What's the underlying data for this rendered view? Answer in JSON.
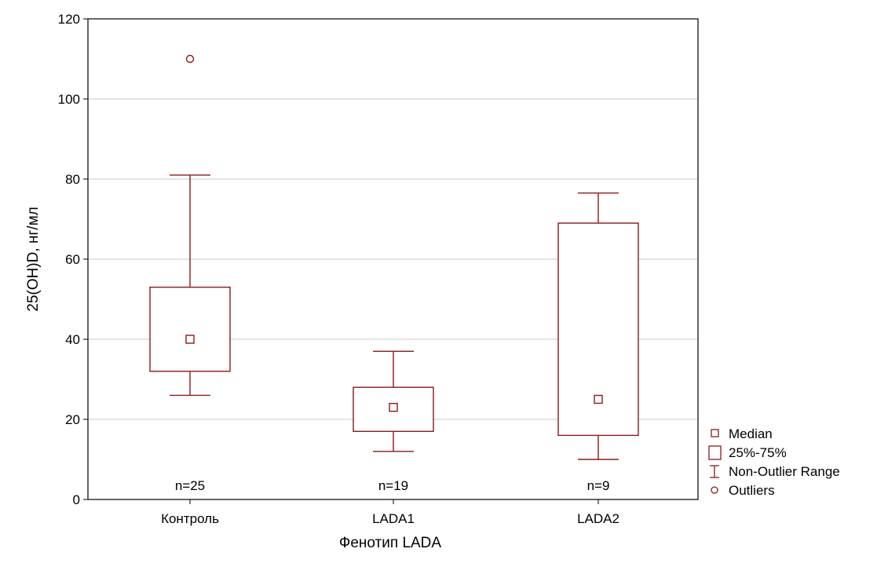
{
  "chart_data": {
    "type": "boxplot",
    "title": "",
    "xlabel": "Фенотип LADA",
    "ylabel": "25(OH)D, нг/мл",
    "ylim": [
      0,
      120
    ],
    "yticks": [
      0,
      20,
      40,
      60,
      80,
      100,
      120
    ],
    "grid": true,
    "categories": [
      "Контроль",
      "LADA1",
      "LADA2"
    ],
    "boxes": [
      {
        "category": "Контроль",
        "median": 40,
        "q1": 32,
        "q3": 53,
        "whisker_low": 26,
        "whisker_high": 81,
        "outliers": [
          110
        ],
        "n_label": "n=25"
      },
      {
        "category": "LADA1",
        "median": 23,
        "q1": 17,
        "q3": 28,
        "whisker_low": 12,
        "whisker_high": 37,
        "outliers": [],
        "n_label": "n=19"
      },
      {
        "category": "LADA2",
        "median": 25,
        "q1": 16,
        "q3": 69,
        "whisker_low": 10,
        "whisker_high": 76.5,
        "outliers": [],
        "n_label": "n=9"
      }
    ],
    "legend": {
      "placement": "bottom-right",
      "items": [
        "Median",
        "25%-75%",
        "Non-Outlier Range",
        "Outliers"
      ]
    },
    "colors": {
      "mark": "#8b1a1a",
      "grid": "#c8c8c8",
      "axis": "#000000"
    }
  }
}
